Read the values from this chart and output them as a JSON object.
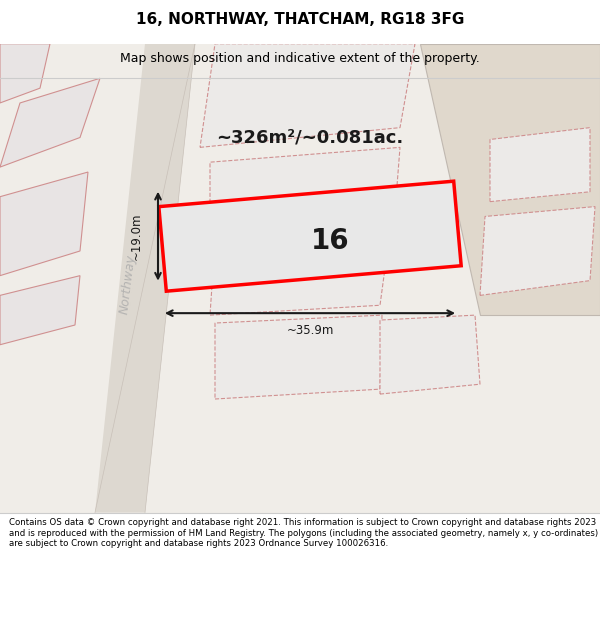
{
  "title_line1": "16, NORTHWAY, THATCHAM, RG18 3FG",
  "title_line2": "Map shows position and indicative extent of the property.",
  "footer_text": "Contains OS data © Crown copyright and database right 2021. This information is subject to Crown copyright and database rights 2023 and is reproduced with the permission of HM Land Registry. The polygons (including the associated geometry, namely x, y co-ordinates) are subject to Crown copyright and database rights 2023 Ordnance Survey 100026316.",
  "area_label": "~326m²/~0.081ac.",
  "width_label": "~35.9m",
  "height_label": "~19.0m",
  "plot_number": "16",
  "bg_color": "#f5f5f5",
  "map_bg": "#f0ede8",
  "road_color": "#d8d0c8",
  "plot_fill": "#e8e8e8",
  "plot_border": "#ff0000",
  "dim_line_color": "#1a1a1a",
  "footer_bg": "#ffffff"
}
